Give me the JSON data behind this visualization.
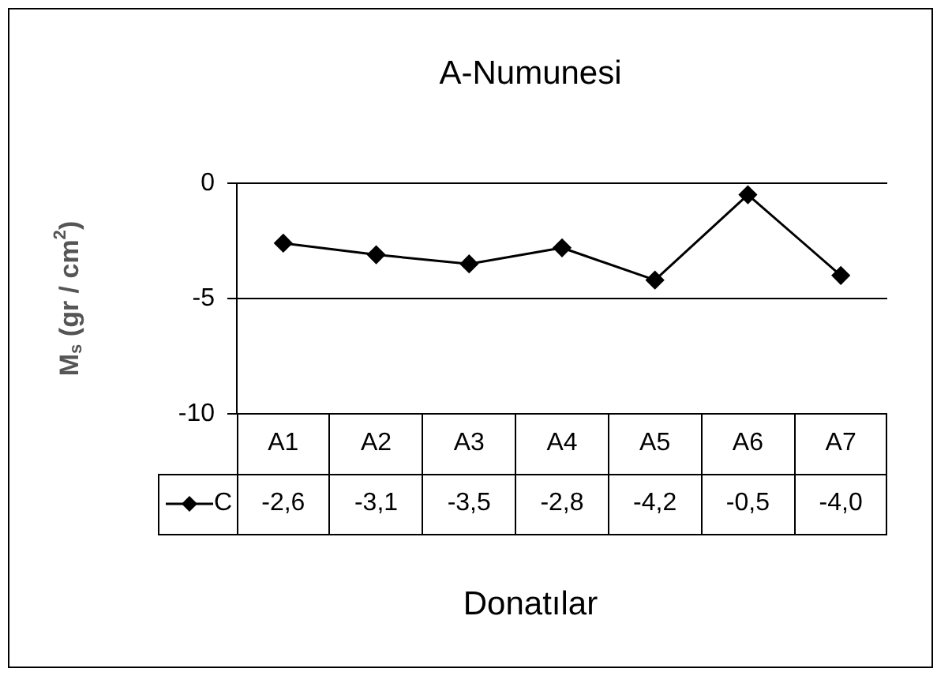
{
  "chart_data": {
    "type": "line",
    "title": "A-Numunesi",
    "xlabel": "Donatılar",
    "ylabel": "M$_{s}$ (gr / cm$^{2}$)",
    "categories": [
      "A1",
      "A2",
      "A3",
      "A4",
      "A5",
      "A6",
      "A7"
    ],
    "series": [
      {
        "name": "C",
        "color": "#000000",
        "values": [
          -2.6,
          -3.1,
          -3.5,
          -2.8,
          -4.2,
          -0.5,
          -4.0
        ],
        "value_labels": [
          "-2,6",
          "-3,1",
          "-3,5",
          "-2,8",
          "-4,2",
          "-0,5",
          "-4,0"
        ]
      }
    ],
    "ylim": [
      -10,
      0
    ],
    "yticks": [
      -10,
      -5,
      0
    ],
    "grid": "y",
    "legend": "bottom",
    "marker": "diamond",
    "line_style": "solid"
  }
}
